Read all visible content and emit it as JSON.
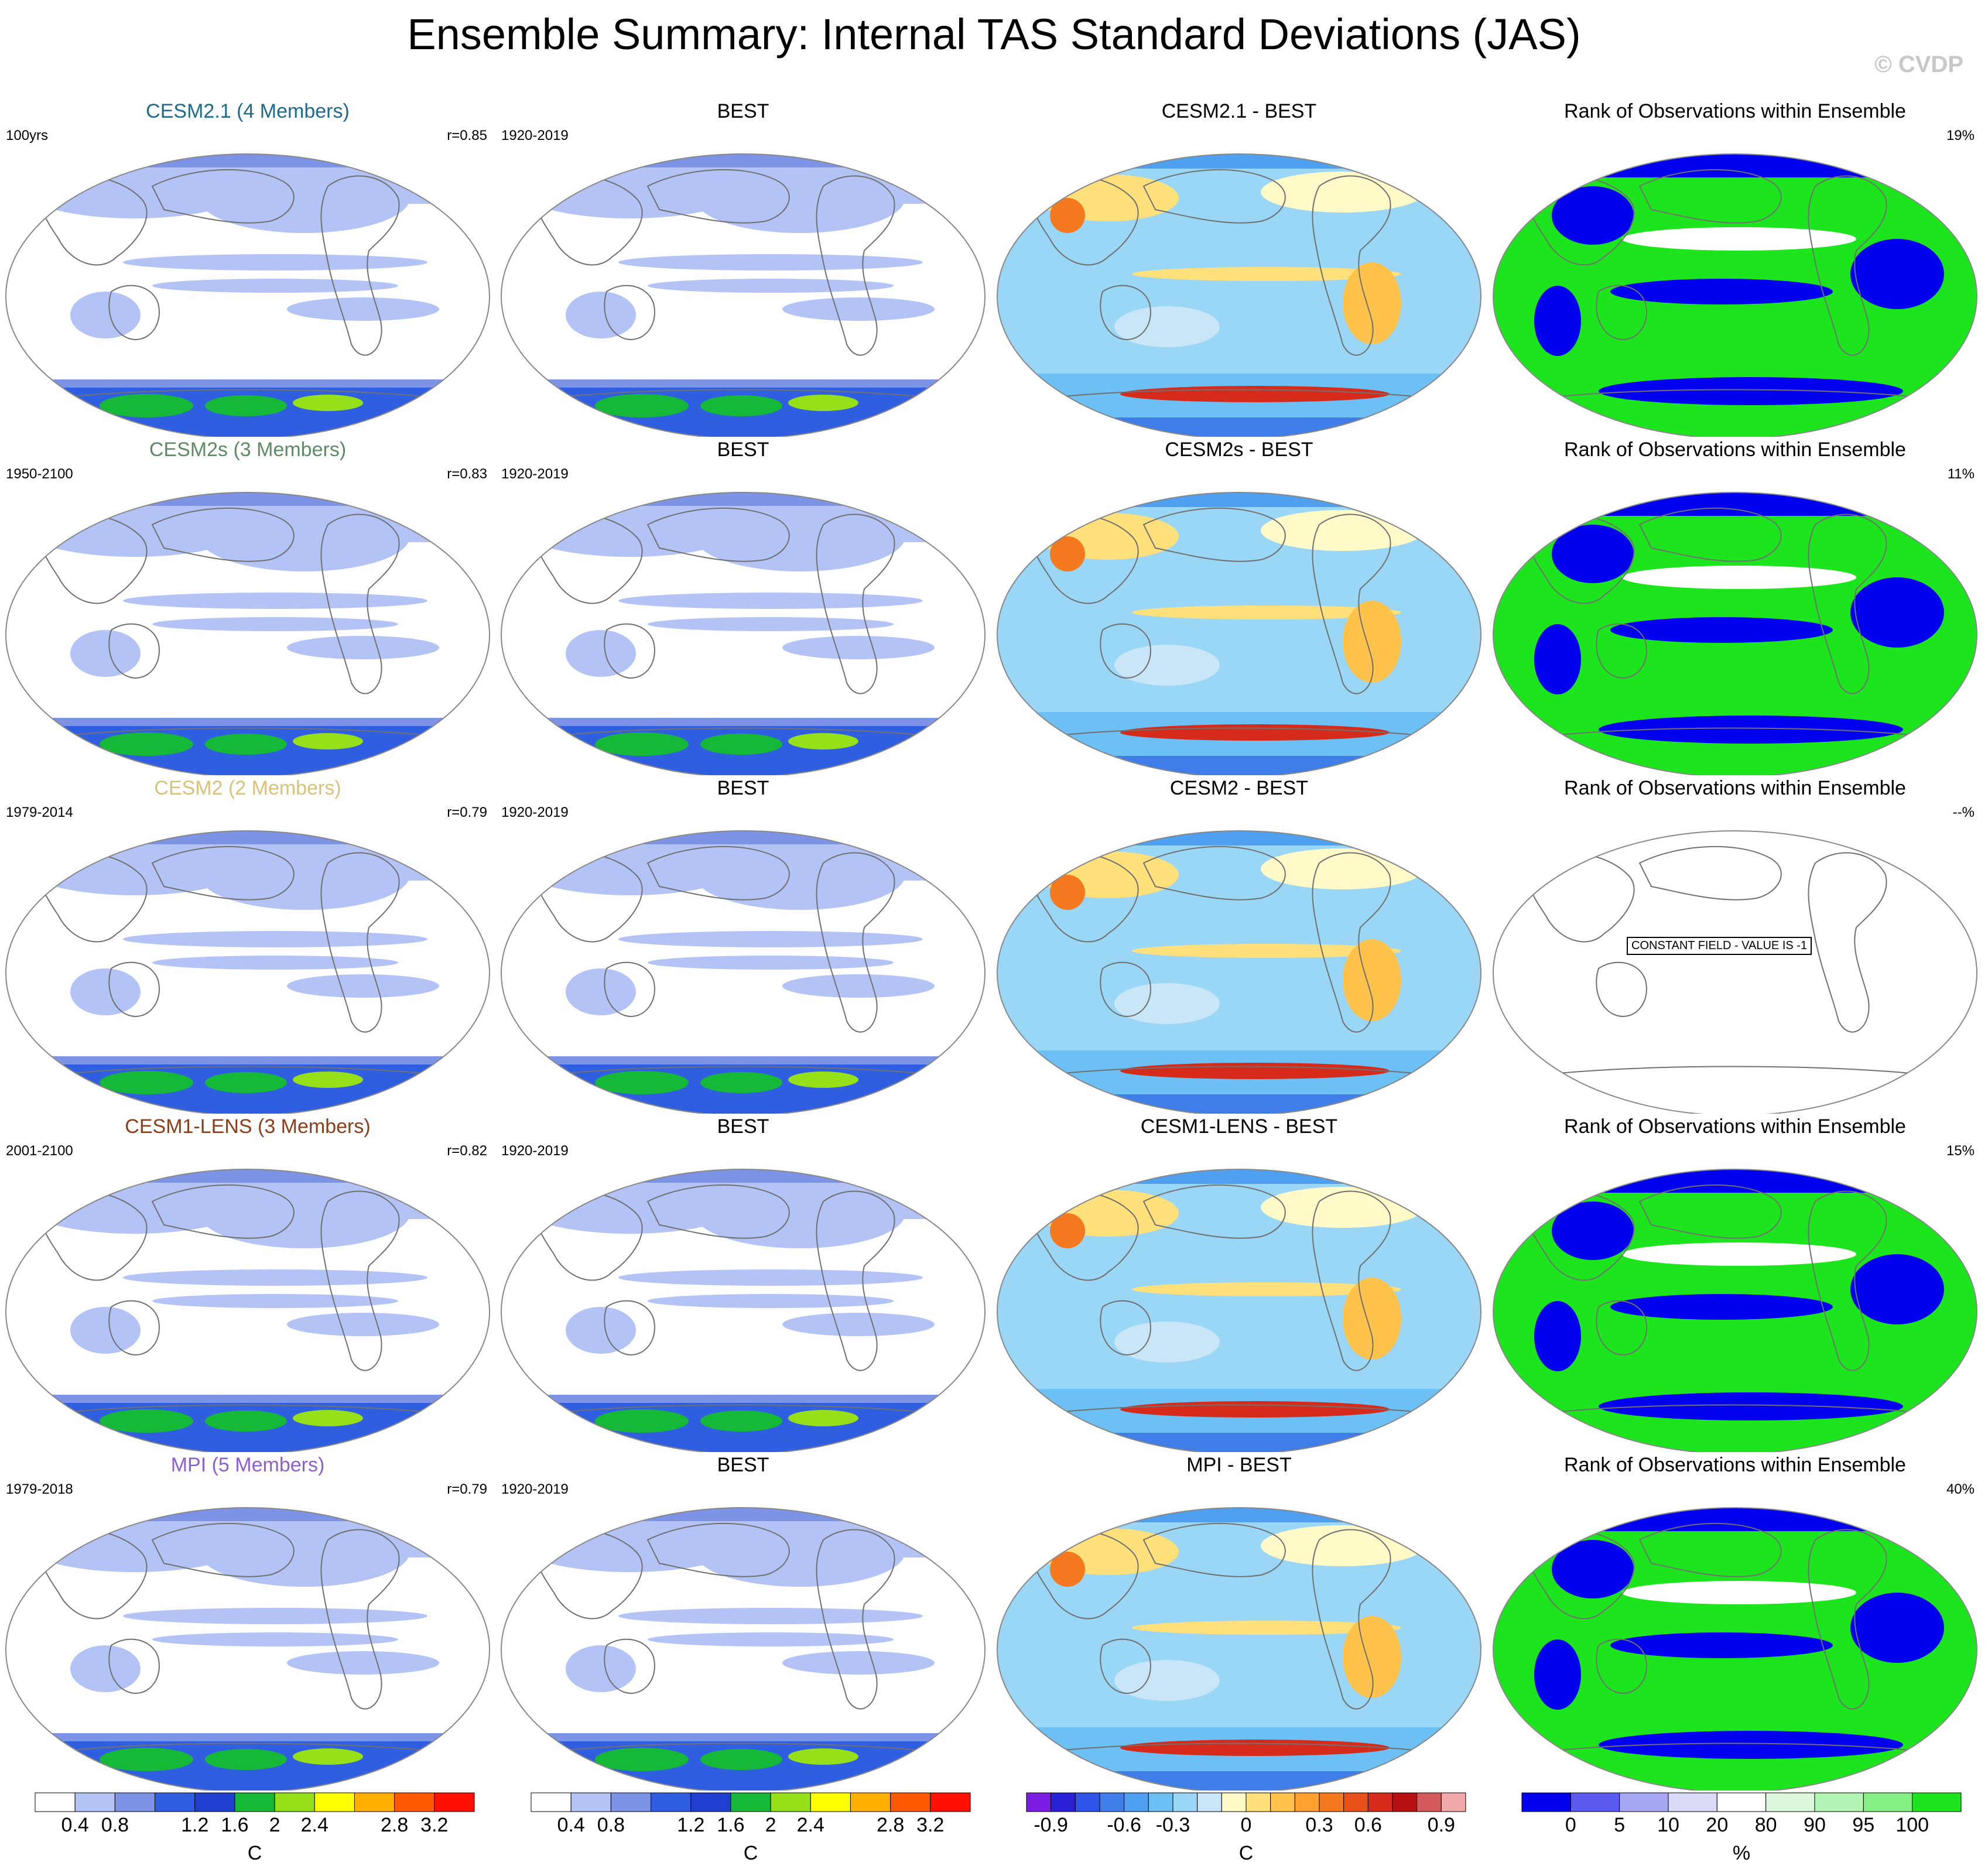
{
  "title": "Ensemble Summary: Internal TAS Standard Deviations (JAS)",
  "copyright": "© CVDP",
  "rows": [
    {
      "model": "CESM2.1 (4 Members)",
      "color": "#1d6b8a",
      "period": "100yrs",
      "r": "r=0.85",
      "obs_title": "BEST",
      "obs_period": "1920-2019",
      "diff_title": "CESM2.1 - BEST",
      "rank_title": "Rank of Observations within Ensemble",
      "rank_pct": "19%",
      "rank_note": ""
    },
    {
      "model": "CESM2s (3 Members)",
      "color": "#5f8a66",
      "period": "1950-2100",
      "r": "r=0.83",
      "obs_title": "BEST",
      "obs_period": "1920-2019",
      "diff_title": "CESM2s - BEST",
      "rank_title": "Rank of Observations within Ensemble",
      "rank_pct": "11%",
      "rank_note": ""
    },
    {
      "model": "CESM2 (2 Members)",
      "color": "#d8c27a",
      "period": "1979-2014",
      "r": "r=0.79",
      "obs_title": "BEST",
      "obs_period": "1920-2019",
      "diff_title": "CESM2 - BEST",
      "rank_title": "Rank of Observations within Ensemble",
      "rank_pct": "--%",
      "rank_note": "CONSTANT FIELD - VALUE IS -1"
    },
    {
      "model": "CESM1-LENS (3 Members)",
      "color": "#8b3e1a",
      "period": "2001-2100",
      "r": "r=0.82",
      "obs_title": "BEST",
      "obs_period": "1920-2019",
      "diff_title": "CESM1-LENS - BEST",
      "rank_title": "Rank of Observations within Ensemble",
      "rank_pct": "15%",
      "rank_note": ""
    },
    {
      "model": "MPI (5 Members)",
      "color": "#8d5fd3",
      "period": "1979-2018",
      "r": "r=0.79",
      "obs_title": "BEST",
      "obs_period": "1920-2019",
      "diff_title": "MPI - BEST",
      "rank_title": "Rank of Observations within Ensemble",
      "rank_pct": "40%",
      "rank_note": ""
    }
  ],
  "colorbars": [
    {
      "unit": "C",
      "labels": [
        "0.4",
        "0.8",
        "1.2",
        "1.6",
        "2",
        "2.4",
        "2.8",
        "3.2"
      ],
      "colors": [
        "#ffffff",
        "#b4c3f5",
        "#7d93e6",
        "#2f5fe0",
        "#1f3fd0",
        "#16b838",
        "#96e01a",
        "#ffff00",
        "#ffb000",
        "#ff5a00",
        "#ff1000"
      ]
    },
    {
      "unit": "C",
      "labels": [
        "0.4",
        "0.8",
        "1.2",
        "1.6",
        "2",
        "2.4",
        "2.8",
        "3.2"
      ],
      "colors": [
        "#ffffff",
        "#b4c3f5",
        "#7d93e6",
        "#2f5fe0",
        "#1f3fd0",
        "#16b838",
        "#96e01a",
        "#ffff00",
        "#ffb000",
        "#ff5a00",
        "#ff1000"
      ]
    },
    {
      "unit": "C",
      "labels": [
        "-0.9",
        "-0.6",
        "-0.3",
        "0",
        "0.3",
        "0.6",
        "0.9"
      ],
      "colors": [
        "#7b1de0",
        "#2a20d8",
        "#2f55e8",
        "#3f7ee8",
        "#4fa0f0",
        "#6cc0f4",
        "#9ad6f6",
        "#c8e6f8",
        "#fffac8",
        "#ffe07a",
        "#ffc24a",
        "#ffa030",
        "#f57a1f",
        "#e8501a",
        "#d62a1a",
        "#b81010",
        "#d35a5a",
        "#f0a8a8"
      ]
    },
    {
      "unit": "%",
      "labels": [
        "0",
        "5",
        "10",
        "20",
        "80",
        "90",
        "95",
        "100"
      ],
      "colors": [
        "#0000ee",
        "#5a5aee",
        "#a6a6f2",
        "#dadaf6",
        "#ffffff",
        "#dcf8dc",
        "#b4f4b4",
        "#86ef86",
        "#1de51d"
      ]
    }
  ]
}
